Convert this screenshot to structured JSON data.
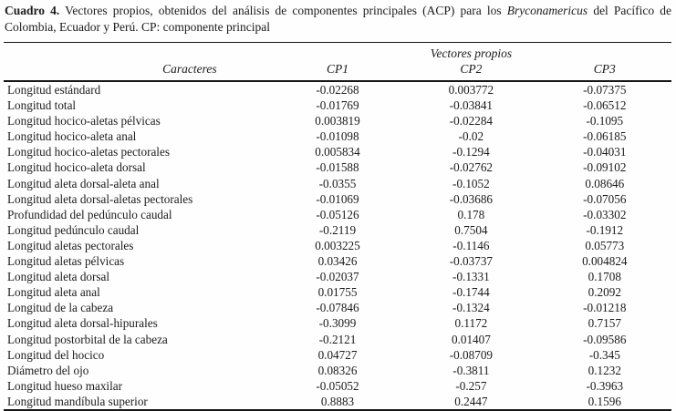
{
  "caption": {
    "label": "Cuadro 4.",
    "segment1": "Vectores propios, obtenidos del análisis de componentes principales (ACP) para los",
    "species": "Bryconamericus",
    "segment2": "del Pacífico de Colombia, Ecuador y Perú. CP: componente principal"
  },
  "table": {
    "group_header": "Vectores propios",
    "columns": [
      "Caracteres",
      "CP1",
      "CP2",
      "CP3"
    ],
    "rows": [
      [
        "Longitud estándard",
        "-0.02268",
        "0.003772",
        "-0.07375"
      ],
      [
        "Longitud total",
        "-0.01769",
        "-0.03841",
        "-0.06512"
      ],
      [
        "Longitud hocico-aletas pélvicas",
        "0.003819",
        "-0.02284",
        "-0.1095"
      ],
      [
        "Longitud hocico-aleta anal",
        "-0.01098",
        "-0.02",
        "-0.06185"
      ],
      [
        "Longitud hocico-aletas pectorales",
        "0.005834",
        "-0.1294",
        "-0.04031"
      ],
      [
        "Longitud hocico-aleta dorsal",
        "-0.01588",
        "-0.02762",
        "-0.09102"
      ],
      [
        "Longitud aleta dorsal-aleta anal",
        "-0.0355",
        "-0.1052",
        "0.08646"
      ],
      [
        "Longitud aleta dorsal-aletas pectorales",
        "-0.01069",
        "-0.03686",
        "-0.07056"
      ],
      [
        "Profundidad del pedúnculo caudal",
        "-0.05126",
        "0.178",
        "-0.03302"
      ],
      [
        "Longitud pedúnculo caudal",
        "-0.2119",
        "0.7504",
        "-0.1912"
      ],
      [
        "Longitud aletas pectorales",
        "0.003225",
        "-0.1146",
        "0.05773"
      ],
      [
        "Longitud aletas pélvicas",
        "0.03426",
        "-0.03737",
        "0.004824"
      ],
      [
        "Longitud aleta dorsal",
        "-0.02037",
        "-0.1331",
        "0.1708"
      ],
      [
        "Longitud aleta anal",
        "0.01755",
        "-0.1744",
        "0.2092"
      ],
      [
        "Longitud de la cabeza",
        "-0.07846",
        "-0.1324",
        "-0.01218"
      ],
      [
        "Longitud aleta dorsal-hipurales",
        "-0.3099",
        "0.1172",
        "0.7157"
      ],
      [
        "Longitud postorbital de la cabeza",
        "-0.2121",
        "0.01407",
        "-0.09586"
      ],
      [
        "Longitud del hocico",
        "0.04727",
        "-0.08709",
        "-0.345"
      ],
      [
        "Diámetro del ojo",
        "0.08326",
        "-0.3811",
        "0.1232"
      ],
      [
        "Longitud hueso maxilar",
        "-0.05052",
        "-0.257",
        "-0.3963"
      ],
      [
        "Longitud mandíbula superior",
        "0.8883",
        "0.2447",
        "0.1596"
      ]
    ]
  },
  "colors": {
    "text": "#1b1b1b",
    "background": "#fefefe",
    "rule": "#161616"
  }
}
